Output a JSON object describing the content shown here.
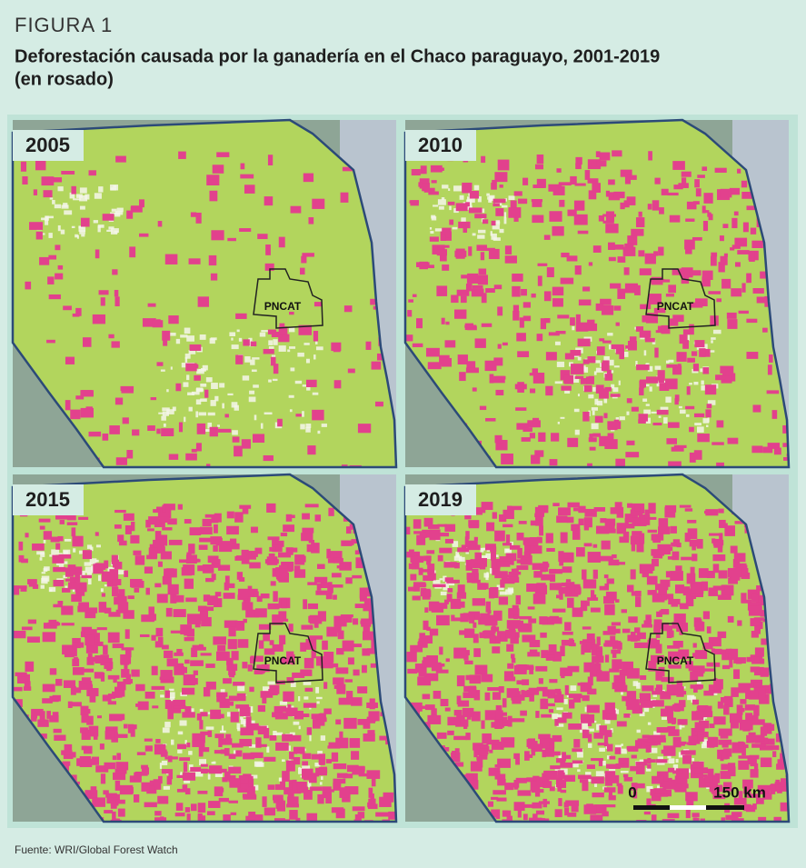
{
  "header": {
    "figure_label": "FIGURA 1",
    "title_line1": "Deforestación causada por la ganadería en el Chaco paraguayo, 2001-2019",
    "title_line2": "(en rosado)"
  },
  "panels": [
    {
      "year": "2005",
      "park": "PNCAT"
    },
    {
      "year": "2010",
      "park": "PNCAT"
    },
    {
      "year": "2015",
      "park": "PNCAT"
    },
    {
      "year": "2019",
      "park": "PNCAT"
    }
  ],
  "scale_bar": {
    "start": "0",
    "end": "150 km"
  },
  "source": "Fuente: WRI/Global Forest Watch"
}
